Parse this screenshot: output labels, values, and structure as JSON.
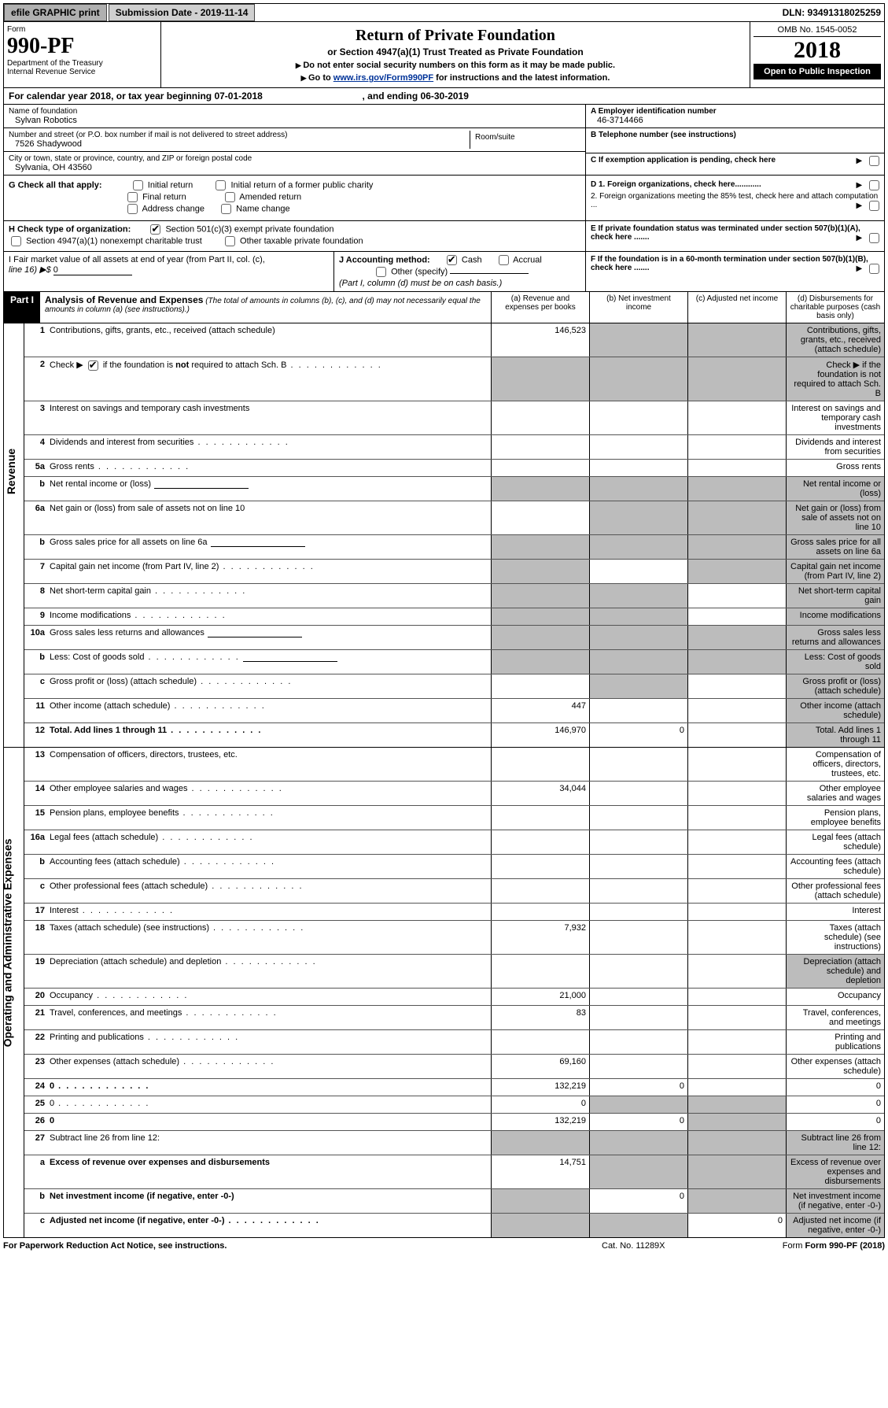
{
  "topbar": {
    "efile": "efile GRAPHIC print",
    "subdate_lbl": "Submission Date - 2019-11-14",
    "dln": "DLN: 93491318025259"
  },
  "header": {
    "form_word": "Form",
    "form_no": "990-PF",
    "dept1": "Department of the Treasury",
    "dept2": "Internal Revenue Service",
    "title": "Return of Private Foundation",
    "subtitle": "or Section 4947(a)(1) Trust Treated as Private Foundation",
    "instr1": "Do not enter social security numbers on this form as it may be made public.",
    "instr2a": "Go to ",
    "instr2b": "www.irs.gov/Form990PF",
    "instr2c": " for instructions and the latest information.",
    "omb": "OMB No. 1545-0052",
    "year": "2018",
    "open": "Open to Public Inspection"
  },
  "calyear": {
    "a": "For calendar year 2018, or tax year beginning 07-01-2018",
    "b": ", and ending 06-30-2019"
  },
  "id": {
    "name_lbl": "Name of foundation",
    "name": "Sylvan Robotics",
    "addr_lbl": "Number and street (or P.O. box number if mail is not delivered to street address)",
    "addr": "7526 Shadywood",
    "room_lbl": "Room/suite",
    "city_lbl": "City or town, state or province, country, and ZIP or foreign postal code",
    "city": "Sylvania, OH  43560",
    "a_lbl": "A Employer identification number",
    "a_val": "46-3714466",
    "b_lbl": "B Telephone number (see instructions)",
    "c_lbl": "C If exemption application is pending, check here"
  },
  "g": {
    "lbl": "G Check all that apply:",
    "opts": [
      "Initial return",
      "Initial return of a former public charity",
      "Final return",
      "Amended return",
      "Address change",
      "Name change"
    ]
  },
  "d": {
    "d1": "D 1. Foreign organizations, check here............",
    "d2": "2. Foreign organizations meeting the 85% test, check here and attach computation ...",
    "e": "E  If private foundation status was terminated under section 507(b)(1)(A), check here .......",
    "f": "F  If the foundation is in a 60-month termination under section 507(b)(1)(B), check here ......."
  },
  "h": {
    "lbl": "H Check type of organization:",
    "o1": "Section 501(c)(3) exempt private foundation",
    "o2": "Section 4947(a)(1) nonexempt charitable trust",
    "o3": "Other taxable private foundation"
  },
  "i": {
    "lbl": "I Fair market value of all assets at end of year (from Part II, col. (c),",
    "line16": "line 16) ▶$ ",
    "val": "0"
  },
  "j": {
    "lbl": "J Accounting method:",
    "cash": "Cash",
    "accr": "Accrual",
    "other": "Other (specify)",
    "note": "(Part I, column (d) must be on cash basis.)"
  },
  "part1": {
    "tab": "Part I",
    "title": "Analysis of Revenue and Expenses",
    "note": " (The total of amounts in columns (b), (c), and (d) may not necessarily equal the amounts in column (a) (see instructions).)",
    "cols": {
      "a": "(a)   Revenue and expenses per books",
      "b": "(b)   Net investment income",
      "c": "(c)   Adjusted net income",
      "d": "(d)   Disbursements for charitable purposes (cash basis only)"
    }
  },
  "side": {
    "rev": "Revenue",
    "exp": "Operating and Administrative Expenses"
  },
  "rows": [
    {
      "n": "1",
      "d": "Contributions, gifts, grants, etc., received (attach schedule)",
      "a": "146,523",
      "grey": "bcd"
    },
    {
      "n": "2",
      "d": "Check ▶     if the foundation is not required to attach Sch. B",
      "ck": true,
      "dots": true,
      "nocols": true,
      "grey": "abcd"
    },
    {
      "n": "3",
      "d": "Interest on savings and temporary cash investments"
    },
    {
      "n": "4",
      "d": "Dividends and interest from securities",
      "dots": true
    },
    {
      "n": "5a",
      "d": "Gross rents",
      "dots": true
    },
    {
      "n": "b",
      "d": "Net rental income or (loss)",
      "inline": true,
      "grey": "abcd"
    },
    {
      "n": "6a",
      "d": "Net gain or (loss) from sale of assets not on line 10",
      "grey": "bcd"
    },
    {
      "n": "b",
      "d": "Gross sales price for all assets on line 6a",
      "inline": true,
      "grey": "abcd"
    },
    {
      "n": "7",
      "d": "Capital gain net income (from Part IV, line 2)",
      "dots": true,
      "grey": "acd"
    },
    {
      "n": "8",
      "d": "Net short-term capital gain",
      "dots": true,
      "grey": "abd"
    },
    {
      "n": "9",
      "d": "Income modifications",
      "dots": true,
      "grey": "abd"
    },
    {
      "n": "10a",
      "d": "Gross sales less returns and allowances",
      "inline": true,
      "grey": "abcd"
    },
    {
      "n": "b",
      "d": "Less: Cost of goods sold",
      "dots": true,
      "inline": true,
      "grey": "abcd"
    },
    {
      "n": "c",
      "d": "Gross profit or (loss) (attach schedule)",
      "dots": true,
      "grey": "bd"
    },
    {
      "n": "11",
      "d": "Other income (attach schedule)",
      "dots": true,
      "a": "447",
      "grey": "d"
    },
    {
      "n": "12",
      "d": "Total. Add lines 1 through 11",
      "bold": true,
      "dots": true,
      "a": "146,970",
      "b": "0",
      "grey": "d"
    }
  ],
  "rows2": [
    {
      "n": "13",
      "d": "Compensation of officers, directors, trustees, etc."
    },
    {
      "n": "14",
      "d": "Other employee salaries and wages",
      "dots": true,
      "a": "34,044"
    },
    {
      "n": "15",
      "d": "Pension plans, employee benefits",
      "dots": true
    },
    {
      "n": "16a",
      "d": "Legal fees (attach schedule)",
      "dots": true
    },
    {
      "n": "b",
      "d": "Accounting fees (attach schedule)",
      "dots": true
    },
    {
      "n": "c",
      "d": "Other professional fees (attach schedule)",
      "dots": true
    },
    {
      "n": "17",
      "d": "Interest",
      "dots": true
    },
    {
      "n": "18",
      "d": "Taxes (attach schedule) (see instructions)",
      "dots": true,
      "a": "7,932"
    },
    {
      "n": "19",
      "d": "Depreciation (attach schedule) and depletion",
      "dots": true,
      "grey": "d"
    },
    {
      "n": "20",
      "d": "Occupancy",
      "dots": true,
      "a": "21,000"
    },
    {
      "n": "21",
      "d": "Travel, conferences, and meetings",
      "dots": true,
      "a": "83"
    },
    {
      "n": "22",
      "d": "Printing and publications",
      "dots": true
    },
    {
      "n": "23",
      "d": "Other expenses (attach schedule)",
      "dots": true,
      "a": "69,160"
    },
    {
      "n": "24",
      "d": "0",
      "bold": true,
      "dots": true,
      "a": "132,219",
      "b": "0"
    },
    {
      "n": "25",
      "d": "0",
      "dots": true,
      "a": "0",
      "grey": "bc"
    },
    {
      "n": "26",
      "d": "0",
      "bold": true,
      "a": "132,219",
      "b": "0",
      "grey": "c"
    },
    {
      "n": "27",
      "d": "Subtract line 26 from line 12:",
      "grey": "abcd"
    },
    {
      "n": "a",
      "d": "Excess of revenue over expenses and disbursements",
      "bold": true,
      "a": "14,751",
      "grey": "bcd"
    },
    {
      "n": "b",
      "d": "Net investment income (if negative, enter -0-)",
      "bold": true,
      "b": "0",
      "grey": "acd"
    },
    {
      "n": "c",
      "d": "Adjusted net income (if negative, enter -0-)",
      "bold": true,
      "dots": true,
      "c": "0",
      "grey": "abd"
    }
  ],
  "footer": {
    "pra": "For Paperwork Reduction Act Notice, see instructions.",
    "cat": "Cat. No. 11289X",
    "form": "Form 990-PF (2018)"
  }
}
